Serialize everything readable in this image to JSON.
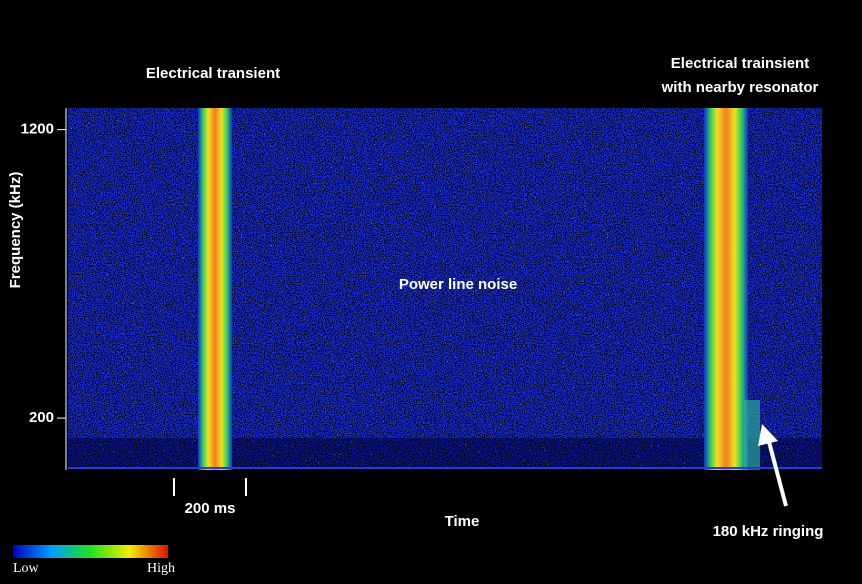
{
  "chart_data": {
    "type": "spectrogram",
    "ylabel": "Frequency (kHz)",
    "xlabel": "Time",
    "ylim": [
      20,
      1275
    ],
    "yticks": [
      200,
      1200
    ],
    "annotations": [
      "Electrical transient",
      "Electrical trainsient",
      "with nearby resonator",
      "Power line noise",
      "180 kHz ringing"
    ],
    "scale_bar": "200 ms",
    "colorbar": {
      "low": "Low",
      "high": "High"
    }
  }
}
